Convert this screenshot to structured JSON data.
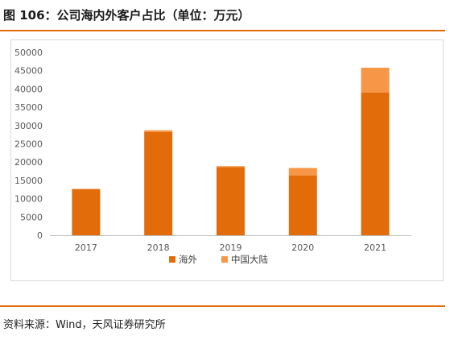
{
  "header": {
    "title": "图 106：公司海内外客户占比（单位：万元）"
  },
  "footer": {
    "source": "资料来源：Wind，天风证券研究所"
  },
  "colors": {
    "accent": "#e36c0a",
    "overseas": "#e36c0a",
    "mainland": "#f79646"
  },
  "chart_data": {
    "type": "bar",
    "stacked": true,
    "categories": [
      "2017",
      "2018",
      "2019",
      "2020",
      "2021"
    ],
    "series": [
      {
        "name": "海外",
        "values": [
          12600,
          28200,
          18600,
          16300,
          39000
        ],
        "color": "#e36c0a"
      },
      {
        "name": "中国大陆",
        "values": [
          100,
          500,
          300,
          2100,
          6800
        ],
        "color": "#f79646"
      }
    ],
    "ylim": [
      0,
      50000
    ],
    "yticks": [
      0,
      5000,
      10000,
      15000,
      20000,
      25000,
      30000,
      35000,
      40000,
      45000,
      50000
    ],
    "legend_position": "bottom",
    "grid": false
  }
}
